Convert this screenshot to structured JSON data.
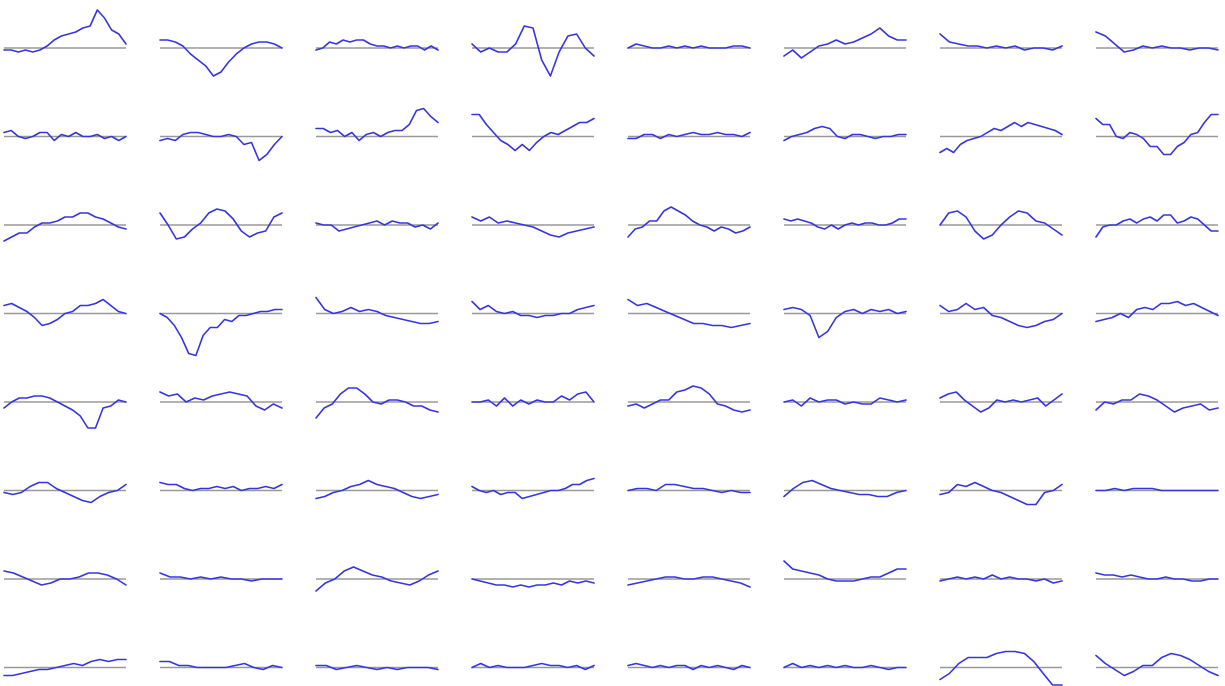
{
  "colors": {
    "series": "#3535e0",
    "zero_line": "#999999",
    "background": "#ffffff"
  },
  "chart_data": {
    "type": "line",
    "layout": "small-multiples",
    "rows": 8,
    "cols": 8,
    "ylim": [
      -1,
      1
    ],
    "baseline": 0,
    "title": "",
    "xlabel": "",
    "ylabel": "",
    "grid": false,
    "panels": [
      [
        -0.05,
        -0.05,
        -0.1,
        -0.05,
        -0.1,
        -0.05,
        0.05,
        0.2,
        0.3,
        0.35,
        0.4,
        0.5,
        0.55,
        0.95,
        0.75,
        0.45,
        0.35,
        0.1
      ],
      [
        0.2,
        0.2,
        0.15,
        0.05,
        -0.15,
        -0.3,
        -0.45,
        -0.7,
        -0.6,
        -0.35,
        -0.15,
        0.0,
        0.1,
        0.15,
        0.15,
        0.1,
        0.0
      ],
      [
        -0.05,
        0.0,
        0.15,
        0.1,
        0.2,
        0.15,
        0.2,
        0.2,
        0.1,
        0.05,
        0.05,
        0.0,
        0.05,
        0.0,
        0.05,
        0.05,
        -0.05,
        0.05,
        -0.05
      ],
      [
        0.1,
        -0.1,
        0.0,
        -0.1,
        -0.1,
        0.1,
        0.55,
        0.5,
        -0.3,
        -0.7,
        -0.1,
        0.3,
        0.35,
        0.0,
        -0.2
      ],
      [
        0.0,
        0.1,
        0.05,
        0.0,
        0.0,
        0.05,
        0.0,
        0.05,
        0.0,
        0.05,
        0.0,
        0.0,
        0.0,
        0.05,
        0.05,
        0.0
      ],
      [
        -0.2,
        -0.05,
        -0.25,
        -0.1,
        0.05,
        0.1,
        0.2,
        0.1,
        0.15,
        0.25,
        0.35,
        0.5,
        0.3,
        0.2,
        0.2
      ],
      [
        0.35,
        0.15,
        0.1,
        0.05,
        0.05,
        0.0,
        0.05,
        0.0,
        0.05,
        -0.05,
        0.0,
        0.0,
        -0.05,
        0.05
      ],
      [
        0.4,
        0.3,
        0.1,
        -0.1,
        -0.05,
        0.05,
        0.0,
        0.05,
        0.0,
        0.0,
        -0.05,
        0.0,
        0.0,
        -0.05
      ],
      [
        0.1,
        0.15,
        0.0,
        -0.05,
        0.0,
        0.1,
        0.1,
        -0.1,
        0.05,
        0.0,
        0.1,
        0.0,
        0.0,
        0.05,
        -0.05,
        0.0,
        -0.1,
        0.0
      ],
      [
        -0.1,
        -0.05,
        -0.1,
        0.05,
        0.1,
        0.1,
        0.05,
        0.0,
        0.0,
        0.05,
        0.0,
        -0.2,
        -0.15,
        -0.6,
        -0.45,
        -0.2,
        0.0
      ],
      [
        0.2,
        0.2,
        0.1,
        0.15,
        0.0,
        0.1,
        -0.1,
        0.05,
        0.1,
        0.0,
        0.1,
        0.15,
        0.15,
        0.3,
        0.65,
        0.7,
        0.5,
        0.35
      ],
      [
        0.55,
        0.55,
        0.3,
        0.1,
        -0.1,
        -0.2,
        -0.35,
        -0.2,
        -0.35,
        -0.15,
        0.0,
        0.1,
        0.05,
        0.15,
        0.25,
        0.35,
        0.35,
        0.45
      ],
      [
        -0.05,
        -0.05,
        0.05,
        0.05,
        -0.05,
        0.05,
        0.0,
        0.05,
        0.1,
        0.05,
        0.05,
        0.1,
        0.05,
        0.05,
        0.0,
        0.1
      ],
      [
        -0.1,
        0.0,
        0.05,
        0.1,
        0.2,
        0.25,
        0.2,
        0.0,
        -0.05,
        0.05,
        0.05,
        0.0,
        -0.05,
        0.0,
        0.0,
        0.05,
        0.05
      ],
      [
        -0.4,
        -0.3,
        -0.4,
        -0.2,
        -0.1,
        -0.05,
        0.0,
        0.1,
        0.2,
        0.15,
        0.25,
        0.35,
        0.25,
        0.35,
        0.3,
        0.25,
        0.2,
        0.15,
        0.05
      ],
      [
        0.45,
        0.3,
        0.3,
        0.0,
        -0.05,
        0.1,
        0.05,
        -0.05,
        -0.25,
        -0.25,
        -0.45,
        -0.45,
        -0.25,
        -0.15,
        0.05,
        0.1,
        0.35,
        0.55,
        0.55
      ],
      [
        -0.4,
        -0.3,
        -0.2,
        -0.2,
        -0.05,
        0.05,
        0.05,
        0.1,
        0.2,
        0.2,
        0.3,
        0.3,
        0.2,
        0.15,
        0.05,
        -0.05,
        -0.1
      ],
      [
        0.3,
        0.0,
        -0.35,
        -0.3,
        -0.1,
        0.05,
        0.3,
        0.4,
        0.35,
        0.15,
        -0.15,
        -0.3,
        -0.2,
        -0.15,
        0.2,
        0.3
      ],
      [
        0.05,
        0.0,
        0.0,
        -0.15,
        -0.1,
        -0.05,
        0.0,
        0.05,
        0.1,
        0.0,
        0.1,
        0.05,
        0.05,
        -0.05,
        0.0,
        -0.1,
        0.05
      ],
      [
        0.2,
        0.1,
        0.2,
        0.05,
        0.1,
        0.05,
        0.0,
        -0.05,
        -0.15,
        -0.25,
        -0.3,
        -0.2,
        -0.15,
        -0.1,
        -0.05
      ],
      [
        -0.3,
        -0.1,
        -0.05,
        0.1,
        0.1,
        0.35,
        0.45,
        0.35,
        0.25,
        0.1,
        0.0,
        -0.05,
        -0.15,
        -0.05,
        -0.1,
        -0.2,
        -0.15,
        -0.05
      ],
      [
        0.15,
        0.1,
        0.15,
        0.1,
        0.05,
        -0.05,
        -0.1,
        0.0,
        -0.1,
        0.0,
        0.05,
        0.0,
        0.05,
        0.05,
        0.0,
        0.0,
        0.05,
        0.15,
        0.15
      ],
      [
        0.0,
        0.3,
        0.35,
        0.2,
        -0.15,
        -0.35,
        -0.25,
        0.0,
        0.2,
        0.35,
        0.3,
        0.1,
        0.05,
        -0.1,
        -0.25
      ],
      [
        -0.3,
        -0.05,
        0.0,
        0.0,
        0.1,
        0.15,
        0.05,
        0.15,
        0.2,
        0.1,
        0.25,
        0.25,
        0.05,
        0.1,
        0.2,
        0.15,
        0.0,
        -0.15,
        -0.15
      ],
      [
        0.2,
        0.25,
        0.15,
        0.05,
        -0.1,
        -0.3,
        -0.25,
        -0.15,
        0.0,
        0.05,
        0.2,
        0.2,
        0.25,
        0.35,
        0.2,
        0.05,
        0.0
      ],
      [
        0.0,
        -0.1,
        -0.3,
        -0.6,
        -1.0,
        -1.05,
        -0.55,
        -0.35,
        -0.35,
        -0.15,
        -0.2,
        -0.05,
        -0.05,
        0.0,
        0.05,
        0.05,
        0.1,
        0.1
      ],
      [
        0.4,
        0.1,
        0.0,
        0.05,
        0.15,
        0.05,
        0.1,
        0.05,
        -0.05,
        -0.1,
        -0.15,
        -0.2,
        -0.25,
        -0.25,
        -0.2
      ],
      [
        0.3,
        0.1,
        0.2,
        0.05,
        0.0,
        0.05,
        -0.05,
        -0.05,
        -0.1,
        -0.05,
        -0.05,
        0.0,
        0.0,
        0.1,
        0.15,
        0.2
      ],
      [
        0.35,
        0.2,
        0.25,
        0.15,
        0.05,
        -0.05,
        -0.15,
        -0.25,
        -0.25,
        -0.3,
        -0.3,
        -0.35,
        -0.3,
        -0.25
      ],
      [
        0.1,
        0.15,
        0.1,
        -0.05,
        -0.6,
        -0.45,
        -0.1,
        0.05,
        0.1,
        0.0,
        0.1,
        0.05,
        0.1,
        0.0,
        0.05
      ],
      [
        0.2,
        0.05,
        0.1,
        0.25,
        0.1,
        0.15,
        -0.05,
        -0.1,
        -0.2,
        -0.3,
        -0.35,
        -0.3,
        -0.2,
        -0.15,
        0.0
      ],
      [
        -0.2,
        -0.15,
        -0.1,
        0.0,
        -0.1,
        0.1,
        0.15,
        0.1,
        0.25,
        0.25,
        0.3,
        0.2,
        0.25,
        0.15,
        0.05,
        -0.05
      ],
      [
        -0.15,
        0.0,
        0.1,
        0.1,
        0.15,
        0.15,
        0.1,
        0.0,
        -0.1,
        -0.2,
        -0.35,
        -0.65,
        -0.65,
        -0.15,
        -0.1,
        0.05,
        0.0
      ],
      [
        0.25,
        0.15,
        0.2,
        0.0,
        0.1,
        0.05,
        0.15,
        0.2,
        0.25,
        0.2,
        0.15,
        -0.1,
        -0.2,
        -0.05,
        -0.15
      ],
      [
        -0.4,
        -0.15,
        -0.05,
        0.2,
        0.35,
        0.35,
        0.2,
        0.0,
        -0.05,
        0.05,
        0.05,
        0.0,
        -0.1,
        -0.1,
        -0.2,
        -0.25
      ],
      [
        0.0,
        0.0,
        0.05,
        -0.1,
        0.1,
        -0.1,
        0.05,
        -0.05,
        0.05,
        0.0,
        0.0,
        0.15,
        0.05,
        0.2,
        0.25,
        0.0
      ],
      [
        -0.1,
        -0.05,
        -0.15,
        -0.05,
        0.05,
        0.05,
        0.25,
        0.3,
        0.4,
        0.35,
        0.2,
        -0.05,
        -0.1,
        -0.2,
        -0.25,
        -0.2
      ],
      [
        0.0,
        0.05,
        -0.1,
        0.1,
        0.0,
        0.05,
        0.05,
        -0.05,
        0.0,
        -0.05,
        -0.05,
        0.1,
        0.05,
        0.0,
        0.05
      ],
      [
        0.1,
        0.2,
        0.25,
        0.05,
        -0.1,
        -0.25,
        -0.15,
        0.05,
        0.0,
        0.05,
        0.0,
        0.05,
        0.1,
        -0.1,
        0.05,
        0.2
      ],
      [
        -0.2,
        0.0,
        -0.05,
        0.05,
        0.05,
        0.2,
        0.15,
        0.05,
        -0.1,
        -0.25,
        -0.15,
        -0.1,
        -0.05,
        -0.2,
        -0.15
      ],
      [
        -0.05,
        -0.1,
        -0.05,
        0.1,
        0.2,
        0.2,
        0.05,
        -0.05,
        -0.15,
        -0.25,
        -0.3,
        -0.15,
        -0.05,
        0.0,
        0.15
      ],
      [
        0.2,
        0.15,
        0.15,
        0.05,
        0.0,
        0.05,
        0.05,
        0.1,
        0.05,
        0.1,
        0.0,
        0.05,
        0.05,
        0.1,
        0.05,
        0.15
      ],
      [
        -0.2,
        -0.15,
        -0.05,
        0.0,
        0.1,
        0.15,
        0.25,
        0.15,
        0.1,
        0.05,
        -0.05,
        -0.15,
        -0.2,
        -0.15,
        -0.1
      ],
      [
        0.1,
        0.0,
        -0.05,
        0.0,
        -0.1,
        -0.05,
        -0.05,
        -0.2,
        -0.15,
        -0.1,
        -0.05,
        0.0,
        0.0,
        0.05,
        0.15,
        0.15,
        0.25,
        0.3
      ],
      [
        0.0,
        0.05,
        0.05,
        0.0,
        0.15,
        0.15,
        0.1,
        0.05,
        0.05,
        0.0,
        -0.05,
        0.0,
        -0.05,
        -0.05
      ],
      [
        -0.15,
        0.05,
        0.2,
        0.25,
        0.15,
        0.05,
        0.0,
        -0.05,
        -0.1,
        -0.1,
        -0.15,
        -0.15,
        -0.05,
        0.0
      ],
      [
        -0.1,
        -0.05,
        0.15,
        0.1,
        0.2,
        0.1,
        0.0,
        -0.05,
        -0.15,
        -0.25,
        -0.35,
        -0.35,
        -0.05,
        0.0,
        0.15
      ],
      [
        0.0,
        0.0,
        0.05,
        0.0,
        0.05,
        0.05,
        0.05,
        0.0,
        0.0,
        0.0,
        0.0,
        0.0,
        0.0,
        0.0
      ],
      [
        0.2,
        0.15,
        0.05,
        -0.05,
        -0.15,
        -0.1,
        0.0,
        0.0,
        0.05,
        0.15,
        0.15,
        0.1,
        0.0,
        -0.15
      ],
      [
        0.15,
        0.05,
        0.05,
        0.0,
        0.05,
        0.0,
        0.05,
        0.0,
        0.0,
        -0.05,
        0.0,
        0.0,
        0.0
      ],
      [
        -0.3,
        -0.1,
        0.0,
        0.2,
        0.3,
        0.2,
        0.1,
        0.05,
        -0.05,
        -0.1,
        -0.15,
        -0.05,
        0.1,
        0.2
      ],
      [
        0.0,
        -0.05,
        -0.1,
        -0.15,
        -0.15,
        -0.2,
        -0.15,
        -0.2,
        -0.15,
        -0.15,
        -0.1,
        -0.15,
        -0.05,
        -0.1,
        -0.05,
        -0.1
      ],
      [
        -0.15,
        -0.1,
        -0.05,
        0.0,
        0.05,
        0.05,
        0.0,
        0.0,
        0.05,
        0.05,
        0.0,
        -0.05,
        -0.1,
        -0.2
      ],
      [
        0.45,
        0.25,
        0.2,
        0.15,
        0.1,
        0.0,
        -0.05,
        -0.05,
        -0.05,
        0.0,
        0.05,
        0.05,
        0.15,
        0.25,
        0.25
      ],
      [
        -0.05,
        0.0,
        0.05,
        0.0,
        0.05,
        0.0,
        0.1,
        0.0,
        0.05,
        0.0,
        0.0,
        -0.05,
        0.0,
        -0.1,
        -0.05
      ],
      [
        0.15,
        0.1,
        0.1,
        0.05,
        0.1,
        0.05,
        0.0,
        0.0,
        0.05,
        0.0,
        0.0,
        -0.05,
        -0.05,
        0.0,
        0.0
      ],
      [
        -0.2,
        -0.2,
        -0.15,
        -0.1,
        -0.05,
        -0.05,
        0.0,
        0.05,
        0.1,
        0.05,
        0.15,
        0.2,
        0.15,
        0.2,
        0.2
      ],
      [
        0.15,
        0.15,
        0.05,
        0.05,
        0.0,
        0.0,
        0.0,
        0.0,
        0.05,
        0.1,
        0.0,
        -0.05,
        0.05,
        0.0
      ],
      [
        0.05,
        0.05,
        -0.05,
        0.0,
        0.05,
        0.0,
        -0.05,
        0.0,
        -0.05,
        0.0,
        0.0,
        0.0,
        -0.05
      ],
      [
        0.0,
        0.1,
        0.0,
        0.05,
        0.0,
        0.0,
        0.0,
        0.05,
        0.1,
        0.05,
        0.05,
        0.0,
        0.05,
        -0.05,
        0.05
      ],
      [
        0.05,
        0.1,
        0.05,
        0.0,
        0.05,
        0.0,
        0.05,
        0.05,
        -0.05,
        0.05,
        0.0,
        0.05,
        0.0,
        -0.05,
        0.05,
        0.0
      ],
      [
        0.0,
        0.1,
        0.0,
        0.05,
        0.0,
        0.05,
        0.0,
        0.05,
        0.0,
        0.0,
        0.05,
        0.0,
        -0.05,
        0.0,
        0.0
      ],
      [
        -0.3,
        -0.15,
        0.1,
        0.25,
        0.25,
        0.25,
        0.35,
        0.4,
        0.4,
        0.35,
        0.15,
        -0.15,
        -0.55,
        -0.5
      ],
      [
        0.3,
        0.1,
        -0.05,
        -0.2,
        -0.1,
        0.05,
        0.05,
        0.25,
        0.35,
        0.3,
        0.2,
        0.05,
        -0.1,
        -0.2
      ]
    ]
  }
}
